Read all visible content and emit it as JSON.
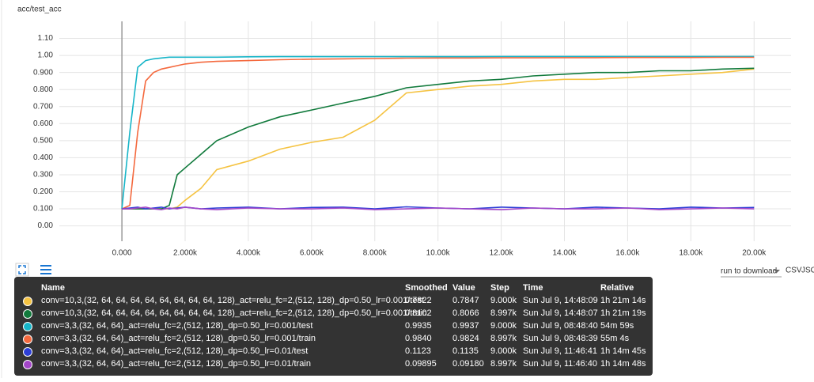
{
  "chart_data": {
    "type": "line",
    "title": "acc/test_acc",
    "x": [
      0,
      250,
      500,
      750,
      1000,
      1250,
      1500,
      1750,
      2000,
      2500,
      3000,
      4000,
      5000,
      6000,
      7000,
      8000,
      9000,
      10000,
      11000,
      12000,
      13000,
      14000,
      15000,
      16000,
      17000,
      18000,
      19000,
      20000
    ],
    "xlim": [
      -1980,
      21170
    ],
    "xticks": [
      {
        "value": 0,
        "label": "0.000"
      },
      {
        "value": 2000,
        "label": "2.000k"
      },
      {
        "value": 4000,
        "label": "4.000k"
      },
      {
        "value": 6000,
        "label": "6.000k"
      },
      {
        "value": 8000,
        "label": "8.000k"
      },
      {
        "value": 10000,
        "label": "10.00k"
      },
      {
        "value": 12000,
        "label": "12.00k"
      },
      {
        "value": 14000,
        "label": "14.00k"
      },
      {
        "value": 16000,
        "label": "16.00k"
      },
      {
        "value": 18000,
        "label": "18.00k"
      },
      {
        "value": 20000,
        "label": "20.00k"
      }
    ],
    "ylim": [
      -0.09,
      1.2
    ],
    "yticks": [
      {
        "value": 0,
        "label": "0.00"
      },
      {
        "value": 0.1,
        "label": "0.100"
      },
      {
        "value": 0.2,
        "label": "0.200"
      },
      {
        "value": 0.3,
        "label": "0.300"
      },
      {
        "value": 0.4,
        "label": "0.400"
      },
      {
        "value": 0.5,
        "label": "0.500"
      },
      {
        "value": 0.6,
        "label": "0.600"
      },
      {
        "value": 0.7,
        "label": "0.700"
      },
      {
        "value": 0.8,
        "label": "0.800"
      },
      {
        "value": 0.9,
        "label": "0.900"
      },
      {
        "value": 1,
        "label": "1.00"
      },
      {
        "value": 1.1,
        "label": "1.10"
      }
    ],
    "grid": true,
    "series": [
      {
        "name": "conv=10,3,(32, 64, 64, 64, 64, 64, 64, 64, 64, 128)_act=relu_fc=2,(512, 128)_dp=0.50_lr=0.001/test",
        "color": "#f5c342",
        "values": [
          0.1,
          0.1,
          0.1,
          0.1,
          0.1,
          0.1,
          0.1,
          0.11,
          0.15,
          0.22,
          0.33,
          0.38,
          0.45,
          0.49,
          0.52,
          0.62,
          0.78,
          0.8,
          0.82,
          0.83,
          0.85,
          0.86,
          0.86,
          0.87,
          0.88,
          0.89,
          0.9,
          0.92
        ]
      },
      {
        "name": "conv=10,3,(32, 64, 64, 64, 64, 64, 64, 64, 64, 128)_act=relu_fc=2,(512, 128)_dp=0.50_lr=0.001/train",
        "color": "#117a3c",
        "values": [
          0.1,
          0.1,
          0.1,
          0.1,
          0.1,
          0.1,
          0.12,
          0.3,
          0.34,
          0.42,
          0.5,
          0.58,
          0.64,
          0.68,
          0.72,
          0.76,
          0.81,
          0.83,
          0.85,
          0.86,
          0.88,
          0.89,
          0.9,
          0.9,
          0.91,
          0.91,
          0.92,
          0.925
        ]
      },
      {
        "name": "conv=3,3,(32, 64, 64)_act=relu_fc=2,(512, 128)_dp=0.50_lr=0.001/test",
        "color": "#17b5c8",
        "values": [
          0.1,
          0.55,
          0.93,
          0.97,
          0.98,
          0.985,
          0.99,
          0.99,
          0.99,
          0.99,
          0.99,
          0.992,
          0.993,
          0.993,
          0.993,
          0.993,
          0.993,
          0.993,
          0.993,
          0.994,
          0.994,
          0.994,
          0.994,
          0.994,
          0.994,
          0.994,
          0.994,
          0.994
        ]
      },
      {
        "name": "conv=3,3,(32, 64, 64)_act=relu_fc=2,(512, 128)_dp=0.50_lr=0.001/train",
        "color": "#f4693e",
        "values": [
          0.1,
          0.12,
          0.55,
          0.85,
          0.9,
          0.92,
          0.93,
          0.94,
          0.95,
          0.96,
          0.965,
          0.97,
          0.975,
          0.978,
          0.98,
          0.982,
          0.984,
          0.985,
          0.985,
          0.986,
          0.986,
          0.987,
          0.987,
          0.988,
          0.988,
          0.988,
          0.989,
          0.989
        ]
      },
      {
        "name": "conv=3,3,(32, 64, 64)_act=relu_fc=2,(512, 128)_dp=0.50_lr=0.01/test",
        "color": "#2d3fd6",
        "values": [
          0.1,
          0.105,
          0.11,
          0.1,
          0.105,
          0.11,
          0.1,
          0.105,
          0.11,
          0.1,
          0.105,
          0.11,
          0.1,
          0.108,
          0.11,
          0.1,
          0.112,
          0.105,
          0.1,
          0.11,
          0.105,
          0.1,
          0.11,
          0.105,
          0.1,
          0.11,
          0.105,
          0.108
        ]
      },
      {
        "name": "conv=3,3,(32, 64, 64)_act=relu_fc=2,(512, 128)_dp=0.50_lr=0.01/train",
        "color": "#a346c8",
        "values": [
          0.1,
          0.1,
          0.105,
          0.11,
          0.1,
          0.095,
          0.105,
          0.1,
          0.11,
          0.1,
          0.095,
          0.105,
          0.1,
          0.1,
          0.105,
          0.095,
          0.1,
          0.105,
          0.1,
          0.095,
          0.105,
          0.1,
          0.1,
          0.105,
          0.095,
          0.1,
          0.105,
          0.1
        ]
      }
    ]
  },
  "controls": {
    "download": "run to download",
    "csv": "CSV",
    "json": "JSON"
  },
  "tooltip": {
    "headers": [
      "Name",
      "Smoothed",
      "Value",
      "Step",
      "Time",
      "Relative"
    ],
    "rows": [
      [
        "0.7822",
        "0.7847",
        "9.000k",
        "Sun Jul 9, 14:48:09",
        "1h 21m 14s"
      ],
      [
        "0.8102",
        "0.8066",
        "8.997k",
        "Sun Jul 9, 14:48:07",
        "1h 21m 19s"
      ],
      [
        "0.9935",
        "0.9937",
        "9.000k",
        "Sun Jul 9, 08:48:40",
        "54m 59s"
      ],
      [
        "0.9840",
        "0.9824",
        "8.997k",
        "Sun Jul 9, 08:48:39",
        "55m 4s"
      ],
      [
        "0.1123",
        "0.1135",
        "9.000k",
        "Sun Jul 9, 11:46:41",
        "1h 14m 45s"
      ],
      [
        "0.09895",
        "0.09180",
        "8.997k",
        "Sun Jul 9, 11:46:40",
        "1h 14m 48s"
      ]
    ]
  }
}
